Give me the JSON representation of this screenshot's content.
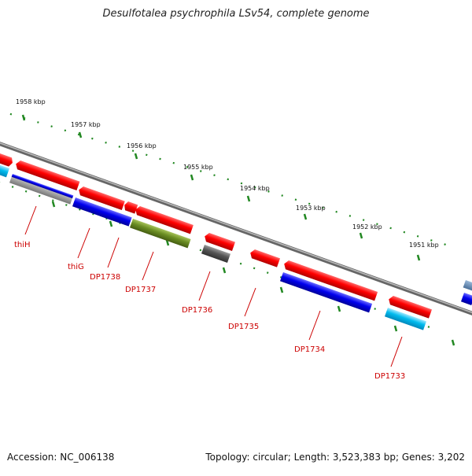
{
  "title": "Desulfotalea psychrophila LSv54, complete genome",
  "footer": {
    "accession": "Accession: NC_006138",
    "summary": "Topology: circular; Length: 3,523,383 bp; Genes: 3,202"
  },
  "ruler_ticks": [
    "1958 kbp",
    "1957 kbp",
    "1956 kbp",
    "1955 kbp",
    "1954 kbp",
    "1953 kbp",
    "1952 kbp",
    "1951 kbp"
  ],
  "gene_labels": [
    "thiH",
    "thiG",
    "DP1738",
    "DP1737",
    "DP1736",
    "DP1735",
    "DP1734",
    "DP1733"
  ],
  "colors": {
    "forward": "#ff0000",
    "reverse": "#0000ee",
    "light_blue": "#00bbee",
    "grey": "#999999",
    "dark_grey": "#555555",
    "olive": "#6b8e23",
    "backbone": "#888888",
    "ruler": "#228822",
    "label": "#cc0000"
  }
}
